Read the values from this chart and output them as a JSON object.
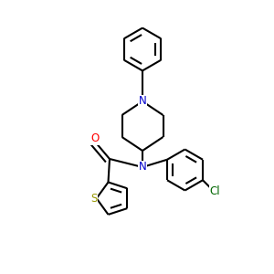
{
  "background_color": "#ffffff",
  "bond_color": "#000000",
  "N_color": "#0000cd",
  "O_color": "#ff0000",
  "S_color": "#999900",
  "Cl_color": "#006600",
  "line_width": 1.5,
  "figsize": [
    3.0,
    3.0
  ],
  "dpi": 100,
  "font_size": 8.5,
  "xlim": [
    0,
    10
  ],
  "ylim": [
    0,
    10
  ]
}
